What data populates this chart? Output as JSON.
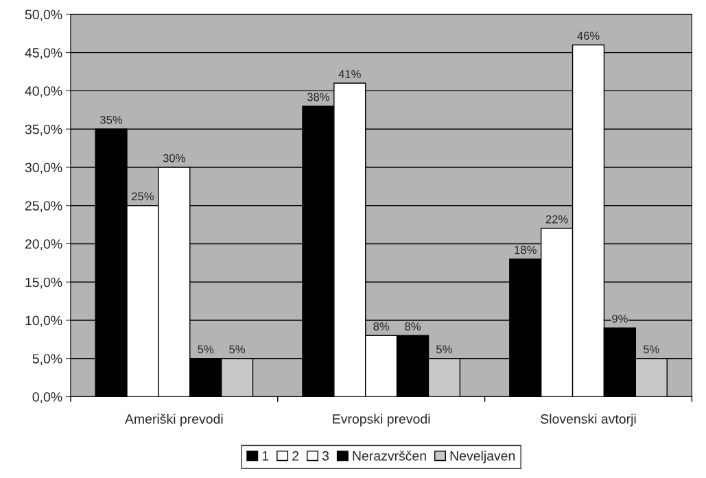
{
  "chart_data": {
    "type": "bar",
    "categories": [
      "Ameriški prevodi",
      "Evropski prevodi",
      "Slovenski avtorji"
    ],
    "series": [
      {
        "name": "1",
        "color": "#000000",
        "values": [
          35,
          38,
          18
        ],
        "value_labels": [
          "35%",
          "38%",
          "18%"
        ]
      },
      {
        "name": "2",
        "color": "#ffffff",
        "values": [
          25,
          41,
          22
        ],
        "value_labels": [
          "25%",
          "41%",
          "22%"
        ]
      },
      {
        "name": "3",
        "color": "#ffffff",
        "values": [
          30,
          8,
          46
        ],
        "value_labels": [
          "30%",
          "8%",
          "46%"
        ]
      },
      {
        "name": "Nerazvrščen",
        "color": "#000000",
        "values": [
          5,
          8,
          9
        ],
        "value_labels": [
          "5%",
          "8%",
          "9%"
        ]
      },
      {
        "name": "Neveljaven",
        "color": "#c8c8c8",
        "values": [
          5,
          5,
          5
        ],
        "value_labels": [
          "5%",
          "5%",
          "5%"
        ]
      }
    ],
    "ylim": [
      0,
      50
    ],
    "yticks": [
      {
        "value": 0,
        "label": "0,0%"
      },
      {
        "value": 5,
        "label": "5,0%"
      },
      {
        "value": 10,
        "label": "10,0%"
      },
      {
        "value": 15,
        "label": "15,0%"
      },
      {
        "value": 20,
        "label": "20,0%"
      },
      {
        "value": 25,
        "label": "25,0%"
      },
      {
        "value": 30,
        "label": "30,0%"
      },
      {
        "value": 35,
        "label": "35,0%"
      },
      {
        "value": 40,
        "label": "40,0%"
      },
      {
        "value": 45,
        "label": "45,0%"
      },
      {
        "value": 50,
        "label": "50,0%"
      }
    ],
    "grid": "y",
    "legend": "bottom"
  }
}
